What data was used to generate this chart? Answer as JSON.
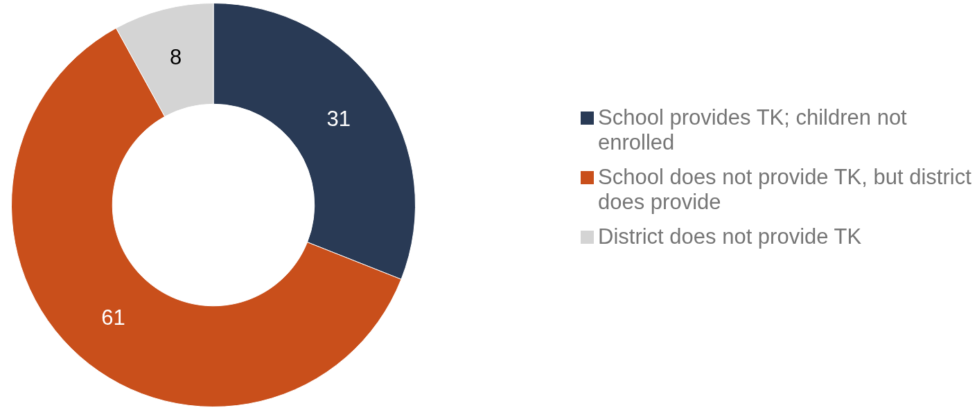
{
  "chart_data": {
    "type": "donut",
    "categories": [
      "School provides TK; children not enrolled",
      "School does not provide TK, but district does provide",
      "District does not provide TK"
    ],
    "values": [
      31,
      61,
      8
    ],
    "colors": [
      "#293a55",
      "#c94f1b",
      "#d4d4d4"
    ],
    "data_labels": true,
    "legend": "right"
  }
}
